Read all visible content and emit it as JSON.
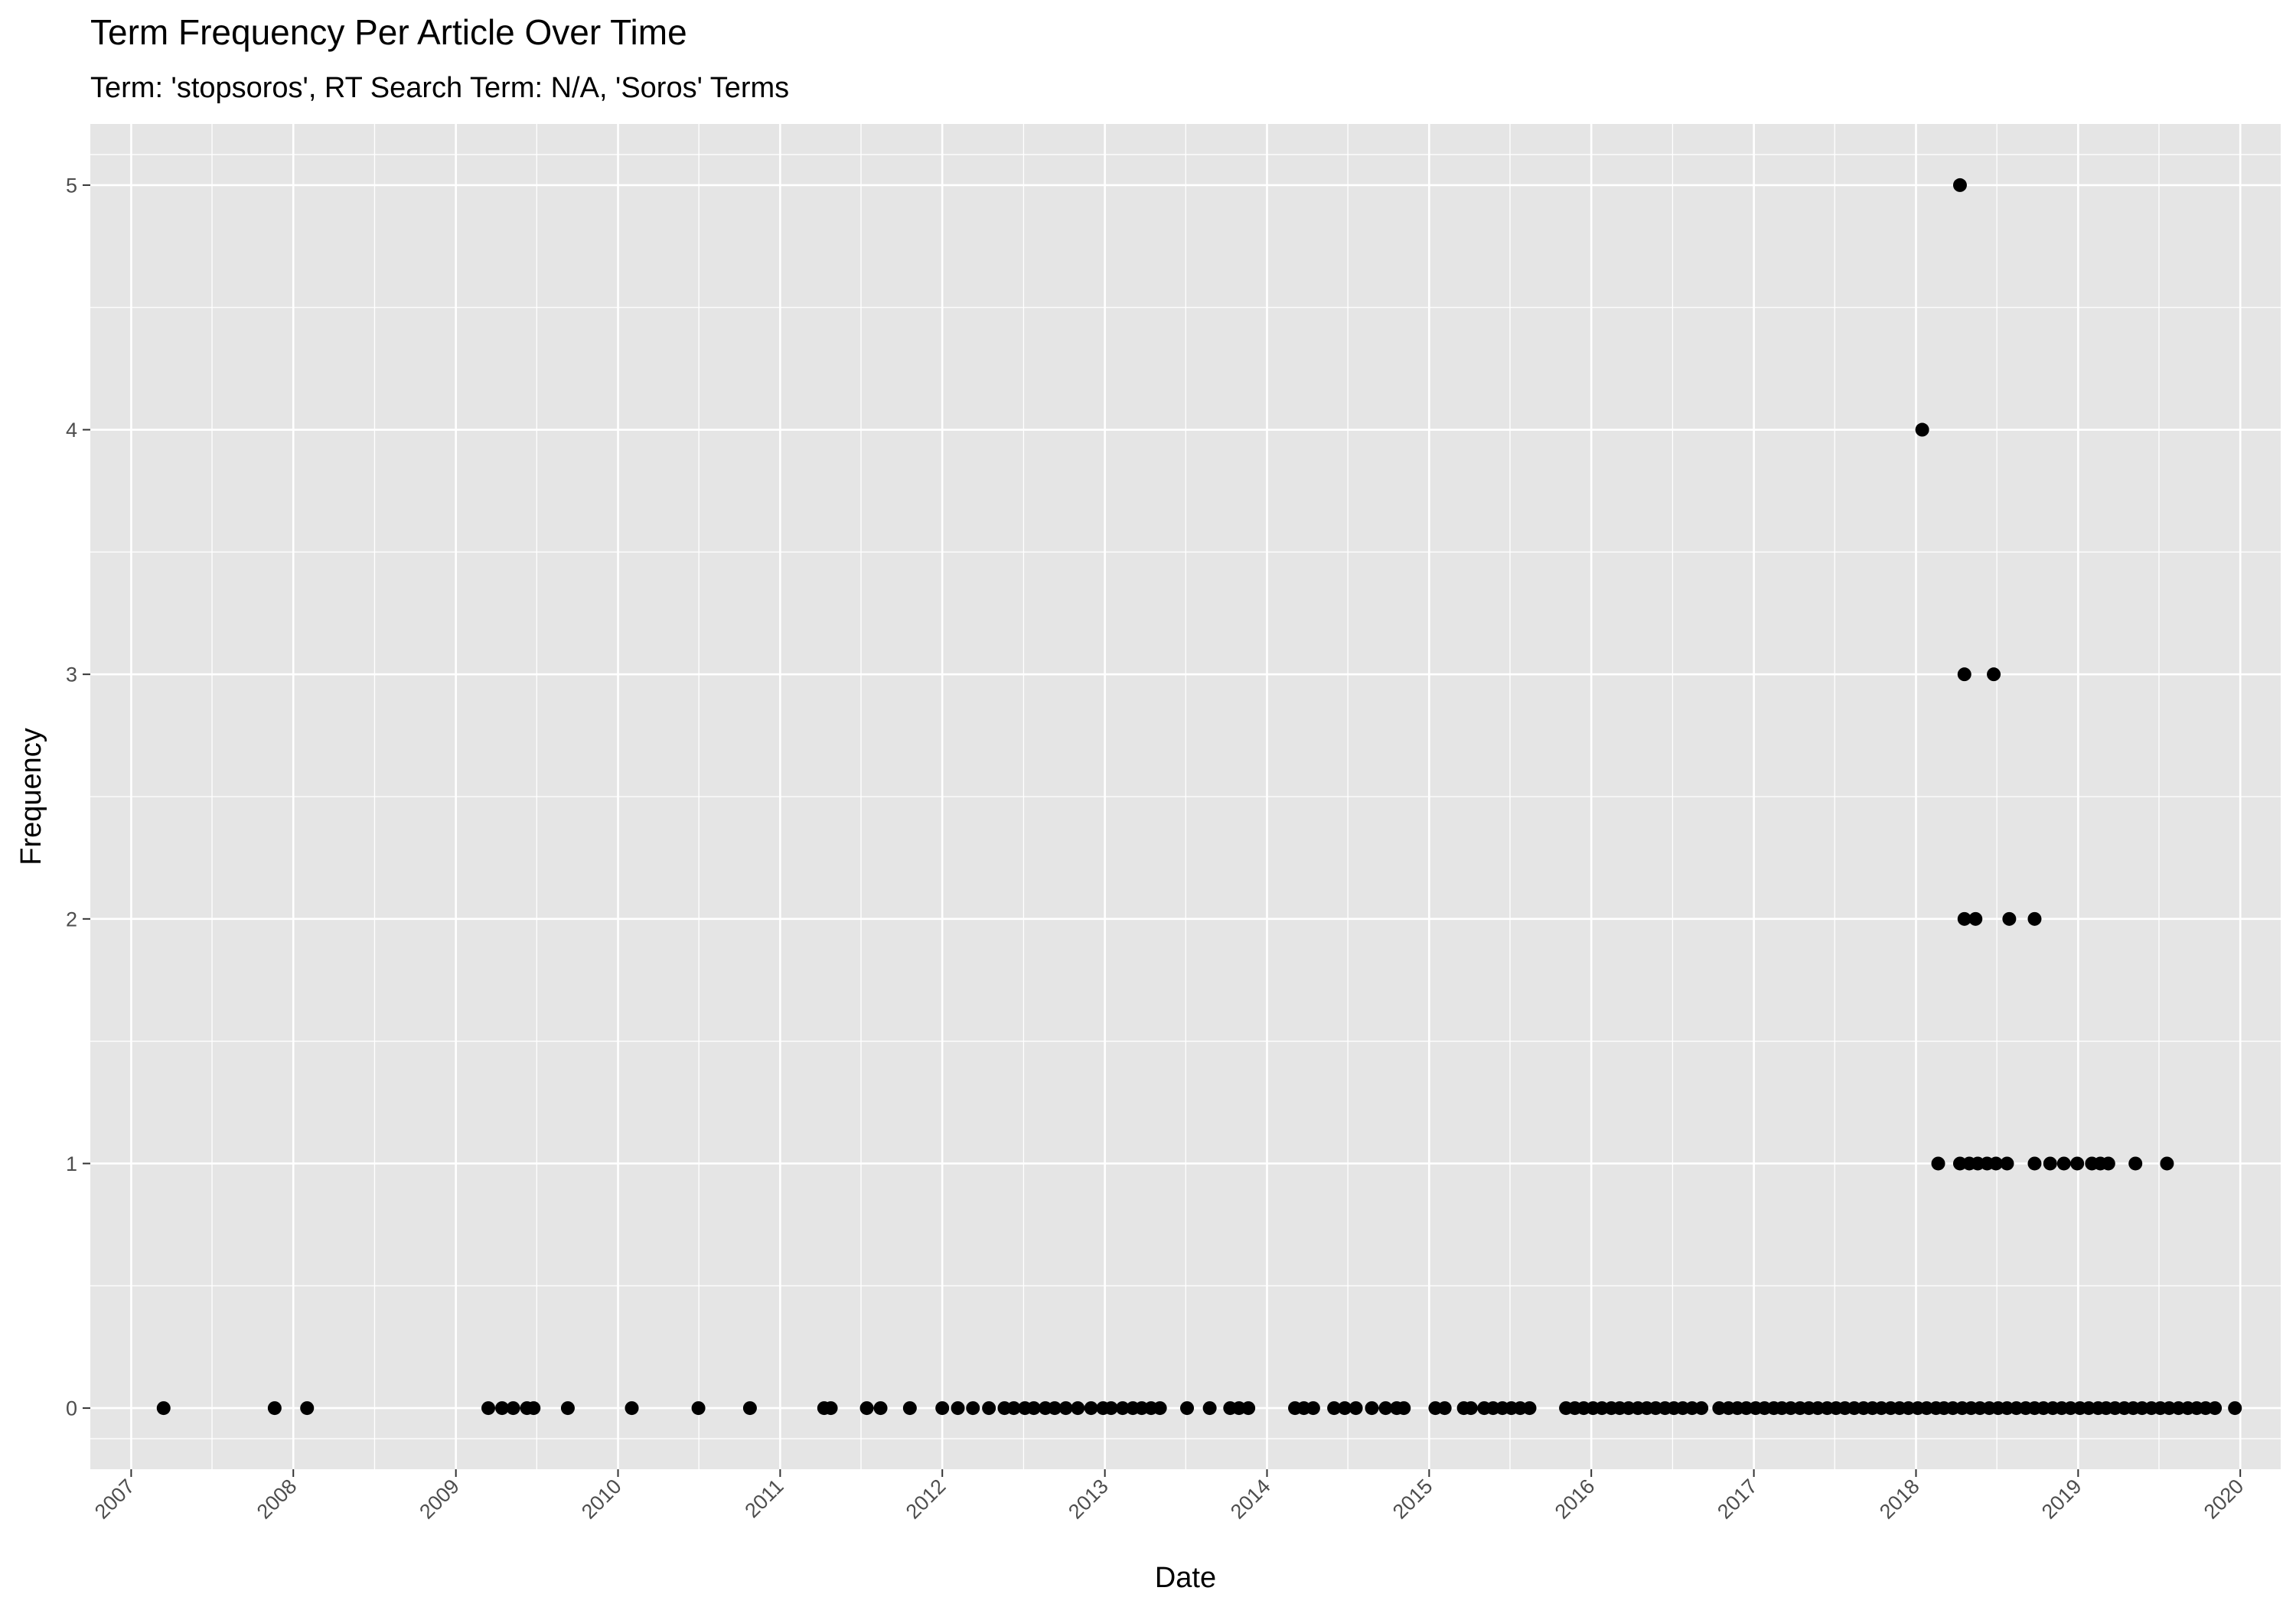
{
  "chart_data": {
    "type": "scatter",
    "title": "Term Frequency Per Article Over Time",
    "subtitle": "Term: 'stopsoros', RT Search Term: N/A, 'Soros' Terms",
    "xlabel": "Date",
    "ylabel": "Frequency",
    "x_type": "date",
    "xlim": [
      "2006-10-01",
      "2020-04-01"
    ],
    "ylim": [
      -0.25,
      5.25
    ],
    "x_ticks": [
      "2007",
      "2008",
      "2009",
      "2010",
      "2011",
      "2012",
      "2013",
      "2014",
      "2015",
      "2016",
      "2017",
      "2018",
      "2019",
      "2020"
    ],
    "y_ticks": [
      "0",
      "1",
      "2",
      "3",
      "4",
      "5"
    ],
    "grid": true,
    "legend": "none",
    "colors": {
      "panel": "#e5e5e5",
      "grid": "#ffffff",
      "point": "#000000",
      "tick_text": "#4d4d4d"
    },
    "points": [
      {
        "x": "2007-03-15",
        "y": 0
      },
      {
        "x": "2007-11-20",
        "y": 0
      },
      {
        "x": "2008-02-01",
        "y": 0
      },
      {
        "x": "2009-03-15",
        "y": 0
      },
      {
        "x": "2009-04-15",
        "y": 0
      },
      {
        "x": "2009-05-10",
        "y": 0
      },
      {
        "x": "2009-06-10",
        "y": 0
      },
      {
        "x": "2009-06-25",
        "y": 0
      },
      {
        "x": "2009-09-10",
        "y": 0
      },
      {
        "x": "2010-02-01",
        "y": 0
      },
      {
        "x": "2010-07-01",
        "y": 0
      },
      {
        "x": "2010-10-25",
        "y": 0
      },
      {
        "x": "2011-04-10",
        "y": 0
      },
      {
        "x": "2011-04-25",
        "y": 0
      },
      {
        "x": "2011-07-15",
        "y": 0
      },
      {
        "x": "2011-08-15",
        "y": 0
      },
      {
        "x": "2011-10-20",
        "y": 0
      },
      {
        "x": "2012-01-01",
        "y": 0
      },
      {
        "x": "2012-02-05",
        "y": 0
      },
      {
        "x": "2012-03-10",
        "y": 0
      },
      {
        "x": "2012-04-15",
        "y": 0
      },
      {
        "x": "2012-05-20",
        "y": 0
      },
      {
        "x": "2012-06-10",
        "y": 0
      },
      {
        "x": "2012-07-05",
        "y": 0
      },
      {
        "x": "2012-07-25",
        "y": 0
      },
      {
        "x": "2012-08-20",
        "y": 0
      },
      {
        "x": "2012-09-10",
        "y": 0
      },
      {
        "x": "2012-10-05",
        "y": 0
      },
      {
        "x": "2012-11-01",
        "y": 0
      },
      {
        "x": "2012-12-01",
        "y": 0
      },
      {
        "x": "2012-12-28",
        "y": 0
      },
      {
        "x": "2013-01-15",
        "y": 0
      },
      {
        "x": "2013-02-10",
        "y": 0
      },
      {
        "x": "2013-03-05",
        "y": 0
      },
      {
        "x": "2013-03-25",
        "y": 0
      },
      {
        "x": "2013-04-15",
        "y": 0
      },
      {
        "x": "2013-05-05",
        "y": 0
      },
      {
        "x": "2013-07-05",
        "y": 0
      },
      {
        "x": "2013-08-25",
        "y": 0
      },
      {
        "x": "2013-10-10",
        "y": 0
      },
      {
        "x": "2013-10-30",
        "y": 0
      },
      {
        "x": "2013-11-20",
        "y": 0
      },
      {
        "x": "2014-03-05",
        "y": 0
      },
      {
        "x": "2014-03-25",
        "y": 0
      },
      {
        "x": "2014-04-15",
        "y": 0
      },
      {
        "x": "2014-06-01",
        "y": 0
      },
      {
        "x": "2014-06-25",
        "y": 0
      },
      {
        "x": "2014-07-20",
        "y": 0
      },
      {
        "x": "2014-08-25",
        "y": 0
      },
      {
        "x": "2014-09-25",
        "y": 0
      },
      {
        "x": "2014-10-20",
        "y": 0
      },
      {
        "x": "2014-11-05",
        "y": 0
      },
      {
        "x": "2015-01-15",
        "y": 0
      },
      {
        "x": "2015-02-05",
        "y": 0
      },
      {
        "x": "2015-03-20",
        "y": 0
      },
      {
        "x": "2015-04-05",
        "y": 0
      },
      {
        "x": "2015-05-05",
        "y": 0
      },
      {
        "x": "2015-05-25",
        "y": 0
      },
      {
        "x": "2015-06-15",
        "y": 0
      },
      {
        "x": "2015-07-05",
        "y": 0
      },
      {
        "x": "2015-07-25",
        "y": 0
      },
      {
        "x": "2015-08-15",
        "y": 0
      },
      {
        "x": "2015-11-05",
        "y": 0
      },
      {
        "x": "2015-11-25",
        "y": 0
      },
      {
        "x": "2015-12-15",
        "y": 0
      },
      {
        "x": "2016-01-05",
        "y": 0
      },
      {
        "x": "2016-01-25",
        "y": 0
      },
      {
        "x": "2016-02-15",
        "y": 0
      },
      {
        "x": "2016-03-05",
        "y": 0
      },
      {
        "x": "2016-03-25",
        "y": 0
      },
      {
        "x": "2016-04-15",
        "y": 0
      },
      {
        "x": "2016-05-05",
        "y": 0
      },
      {
        "x": "2016-05-25",
        "y": 0
      },
      {
        "x": "2016-06-15",
        "y": 0
      },
      {
        "x": "2016-07-05",
        "y": 0
      },
      {
        "x": "2016-07-25",
        "y": 0
      },
      {
        "x": "2016-08-15",
        "y": 0
      },
      {
        "x": "2016-09-05",
        "y": 0
      },
      {
        "x": "2016-10-15",
        "y": 0
      },
      {
        "x": "2016-11-05",
        "y": 0
      },
      {
        "x": "2016-11-25",
        "y": 0
      },
      {
        "x": "2016-12-15",
        "y": 0
      },
      {
        "x": "2017-01-05",
        "y": 0
      },
      {
        "x": "2017-01-25",
        "y": 0
      },
      {
        "x": "2017-02-15",
        "y": 0
      },
      {
        "x": "2017-03-05",
        "y": 0
      },
      {
        "x": "2017-03-25",
        "y": 0
      },
      {
        "x": "2017-04-15",
        "y": 0
      },
      {
        "x": "2017-05-05",
        "y": 0
      },
      {
        "x": "2017-05-25",
        "y": 0
      },
      {
        "x": "2017-06-15",
        "y": 0
      },
      {
        "x": "2017-07-05",
        "y": 0
      },
      {
        "x": "2017-07-25",
        "y": 0
      },
      {
        "x": "2017-08-15",
        "y": 0
      },
      {
        "x": "2017-09-05",
        "y": 0
      },
      {
        "x": "2017-09-25",
        "y": 0
      },
      {
        "x": "2017-10-15",
        "y": 0
      },
      {
        "x": "2017-11-05",
        "y": 0
      },
      {
        "x": "2017-11-25",
        "y": 0
      },
      {
        "x": "2017-12-15",
        "y": 0
      },
      {
        "x": "2018-01-05",
        "y": 0
      },
      {
        "x": "2018-01-25",
        "y": 0
      },
      {
        "x": "2018-02-15",
        "y": 0
      },
      {
        "x": "2018-03-05",
        "y": 0
      },
      {
        "x": "2018-03-25",
        "y": 0
      },
      {
        "x": "2018-04-15",
        "y": 0
      },
      {
        "x": "2018-05-05",
        "y": 0
      },
      {
        "x": "2018-05-25",
        "y": 0
      },
      {
        "x": "2018-06-15",
        "y": 0
      },
      {
        "x": "2018-07-05",
        "y": 0
      },
      {
        "x": "2018-07-25",
        "y": 0
      },
      {
        "x": "2018-08-15",
        "y": 0
      },
      {
        "x": "2018-09-05",
        "y": 0
      },
      {
        "x": "2018-09-25",
        "y": 0
      },
      {
        "x": "2018-10-15",
        "y": 0
      },
      {
        "x": "2018-11-05",
        "y": 0
      },
      {
        "x": "2018-11-25",
        "y": 0
      },
      {
        "x": "2018-12-15",
        "y": 0
      },
      {
        "x": "2019-01-05",
        "y": 0
      },
      {
        "x": "2019-01-25",
        "y": 0
      },
      {
        "x": "2019-02-15",
        "y": 0
      },
      {
        "x": "2019-03-05",
        "y": 0
      },
      {
        "x": "2019-03-25",
        "y": 0
      },
      {
        "x": "2019-04-15",
        "y": 0
      },
      {
        "x": "2019-05-05",
        "y": 0
      },
      {
        "x": "2019-05-25",
        "y": 0
      },
      {
        "x": "2019-06-15",
        "y": 0
      },
      {
        "x": "2019-07-05",
        "y": 0
      },
      {
        "x": "2019-07-25",
        "y": 0
      },
      {
        "x": "2019-08-15",
        "y": 0
      },
      {
        "x": "2019-09-05",
        "y": 0
      },
      {
        "x": "2019-09-25",
        "y": 0
      },
      {
        "x": "2019-10-15",
        "y": 0
      },
      {
        "x": "2019-11-05",
        "y": 0
      },
      {
        "x": "2019-12-20",
        "y": 0
      },
      {
        "x": "2018-01-15",
        "y": 4
      },
      {
        "x": "2018-04-10",
        "y": 5
      },
      {
        "x": "2018-04-20",
        "y": 3
      },
      {
        "x": "2018-06-25",
        "y": 3
      },
      {
        "x": "2018-04-20",
        "y": 2
      },
      {
        "x": "2018-05-15",
        "y": 2
      },
      {
        "x": "2018-07-30",
        "y": 2
      },
      {
        "x": "2018-09-25",
        "y": 2
      },
      {
        "x": "2018-02-20",
        "y": 1
      },
      {
        "x": "2018-04-10",
        "y": 1
      },
      {
        "x": "2018-05-01",
        "y": 1
      },
      {
        "x": "2018-05-20",
        "y": 1
      },
      {
        "x": "2018-06-10",
        "y": 1
      },
      {
        "x": "2018-06-30",
        "y": 1
      },
      {
        "x": "2018-07-25",
        "y": 1
      },
      {
        "x": "2018-09-25",
        "y": 1
      },
      {
        "x": "2018-10-30",
        "y": 1
      },
      {
        "x": "2018-11-30",
        "y": 1
      },
      {
        "x": "2018-12-30",
        "y": 1
      },
      {
        "x": "2019-02-01",
        "y": 1
      },
      {
        "x": "2019-02-20",
        "y": 1
      },
      {
        "x": "2019-03-10",
        "y": 1
      },
      {
        "x": "2019-05-10",
        "y": 1
      },
      {
        "x": "2019-07-20",
        "y": 1
      }
    ]
  }
}
